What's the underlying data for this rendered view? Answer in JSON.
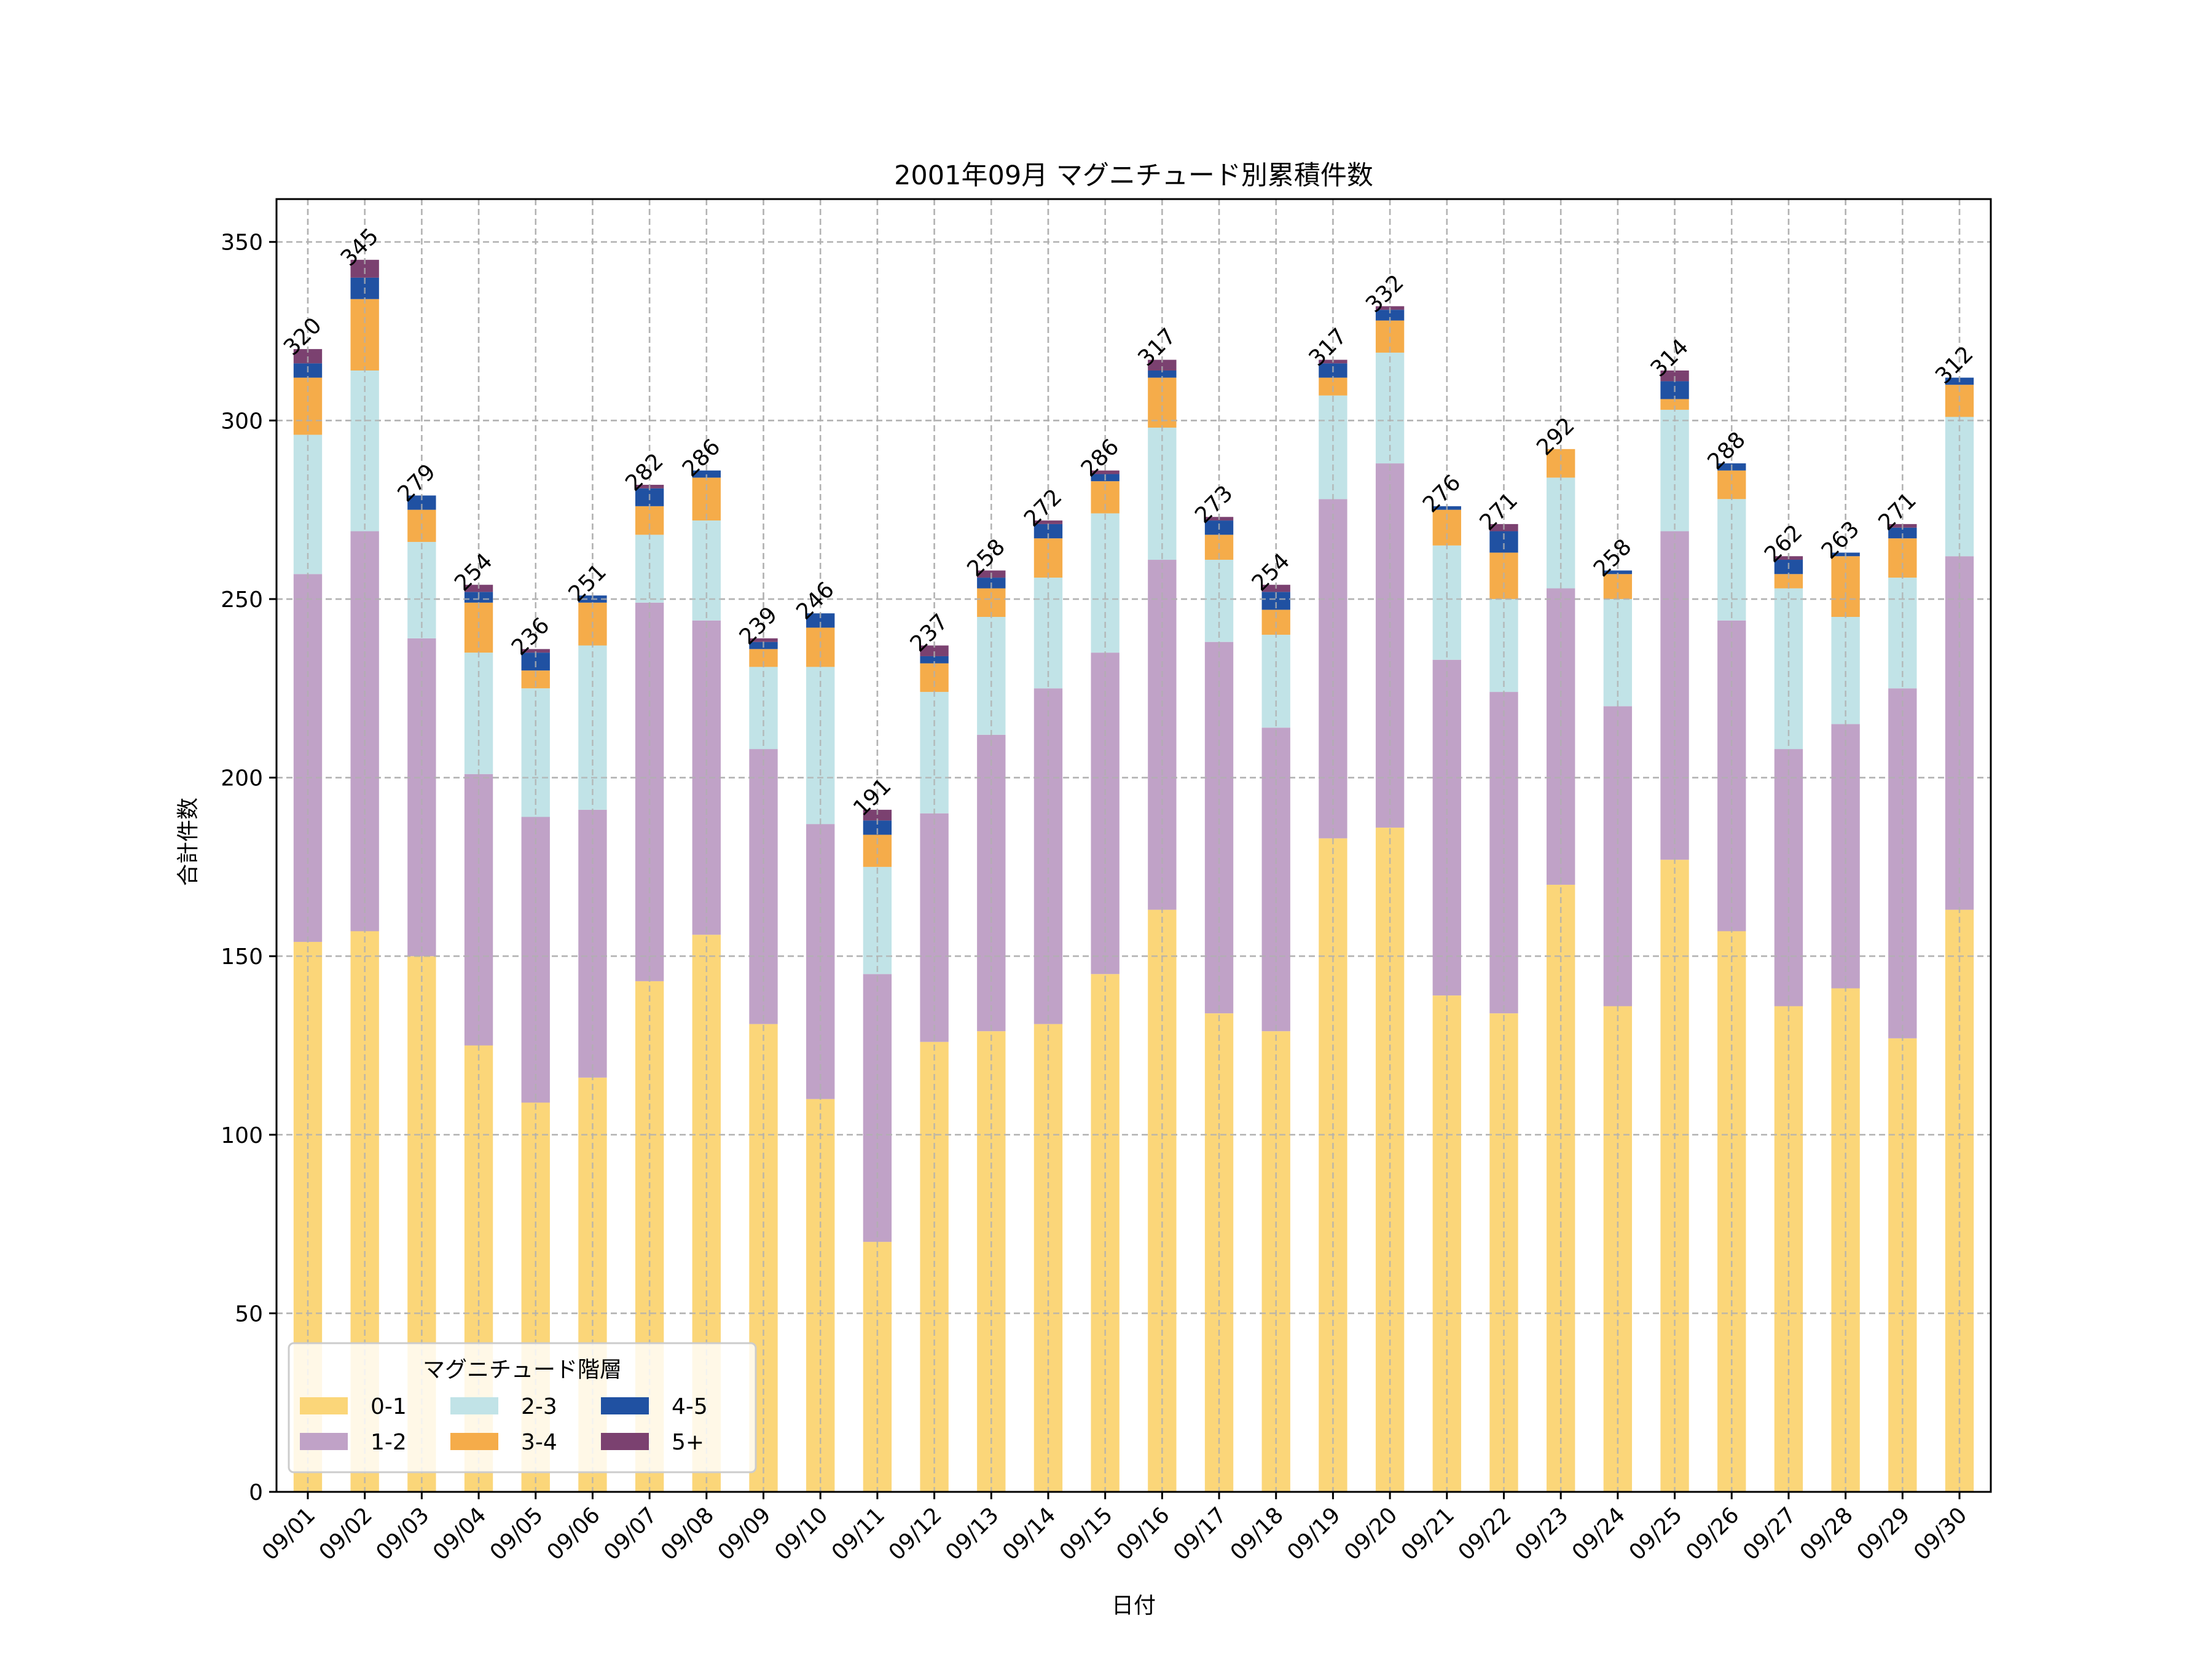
{
  "chart_data": {
    "type": "bar",
    "stacked": true,
    "title": "2001年09月 マグニチュード別累積件数",
    "xlabel": "日付",
    "ylabel": "合計件数",
    "ylim": [
      0,
      362
    ],
    "yticks": [
      0,
      50,
      100,
      150,
      200,
      250,
      300,
      350
    ],
    "grid": true,
    "legend": {
      "title": "マグニチュード階層",
      "placement": "lower-left",
      "columns": 3
    },
    "categories": [
      "09/01",
      "09/02",
      "09/03",
      "09/04",
      "09/05",
      "09/06",
      "09/07",
      "09/08",
      "09/09",
      "09/10",
      "09/11",
      "09/12",
      "09/13",
      "09/14",
      "09/15",
      "09/16",
      "09/17",
      "09/18",
      "09/19",
      "09/20",
      "09/21",
      "09/22",
      "09/23",
      "09/24",
      "09/25",
      "09/26",
      "09/27",
      "09/28",
      "09/29",
      "09/30"
    ],
    "series": [
      {
        "name": "0-1",
        "color": "#FBD679",
        "values": [
          154,
          157,
          150,
          125,
          109,
          116,
          143,
          156,
          131,
          110,
          70,
          126,
          129,
          131,
          145,
          163,
          134,
          129,
          183,
          186,
          139,
          134,
          170,
          136,
          177,
          157,
          136,
          141,
          127,
          163
        ]
      },
      {
        "name": "1-2",
        "color": "#C0A2C7",
        "values": [
          103,
          112,
          89,
          76,
          80,
          75,
          106,
          88,
          77,
          77,
          75,
          64,
          83,
          94,
          90,
          98,
          104,
          85,
          95,
          102,
          94,
          90,
          83,
          84,
          92,
          87,
          72,
          74,
          98,
          99
        ]
      },
      {
        "name": "2-3",
        "color": "#C1E3E7",
        "values": [
          39,
          45,
          27,
          34,
          36,
          46,
          19,
          28,
          23,
          44,
          30,
          34,
          33,
          31,
          39,
          37,
          23,
          26,
          29,
          31,
          32,
          26,
          31,
          30,
          34,
          34,
          45,
          30,
          31,
          39
        ]
      },
      {
        "name": "3-4",
        "color": "#F5AC4A",
        "values": [
          16,
          20,
          9,
          14,
          5,
          12,
          8,
          12,
          5,
          11,
          9,
          8,
          8,
          11,
          9,
          14,
          7,
          7,
          5,
          9,
          10,
          13,
          8,
          7,
          3,
          8,
          4,
          17,
          11,
          9
        ]
      },
      {
        "name": "4-5",
        "color": "#2051A2",
        "values": [
          4,
          6,
          4,
          3,
          5,
          2,
          5,
          2,
          2,
          4,
          4,
          2,
          3,
          4,
          2,
          2,
          4,
          5,
          4,
          3,
          1,
          6,
          0,
          1,
          5,
          2,
          4,
          1,
          3,
          2
        ]
      },
      {
        "name": "5+",
        "color": "#7B4170",
        "values": [
          4,
          5,
          0,
          2,
          1,
          0,
          1,
          0,
          1,
          0,
          3,
          3,
          2,
          1,
          1,
          3,
          1,
          2,
          1,
          1,
          0,
          2,
          0,
          0,
          3,
          0,
          1,
          0,
          1,
          0
        ]
      }
    ],
    "totals": [
      320,
      345,
      279,
      254,
      236,
      251,
      282,
      286,
      239,
      246,
      191,
      237,
      258,
      272,
      286,
      317,
      273,
      254,
      317,
      332,
      276,
      271,
      292,
      258,
      314,
      288,
      262,
      263,
      271,
      312
    ]
  }
}
